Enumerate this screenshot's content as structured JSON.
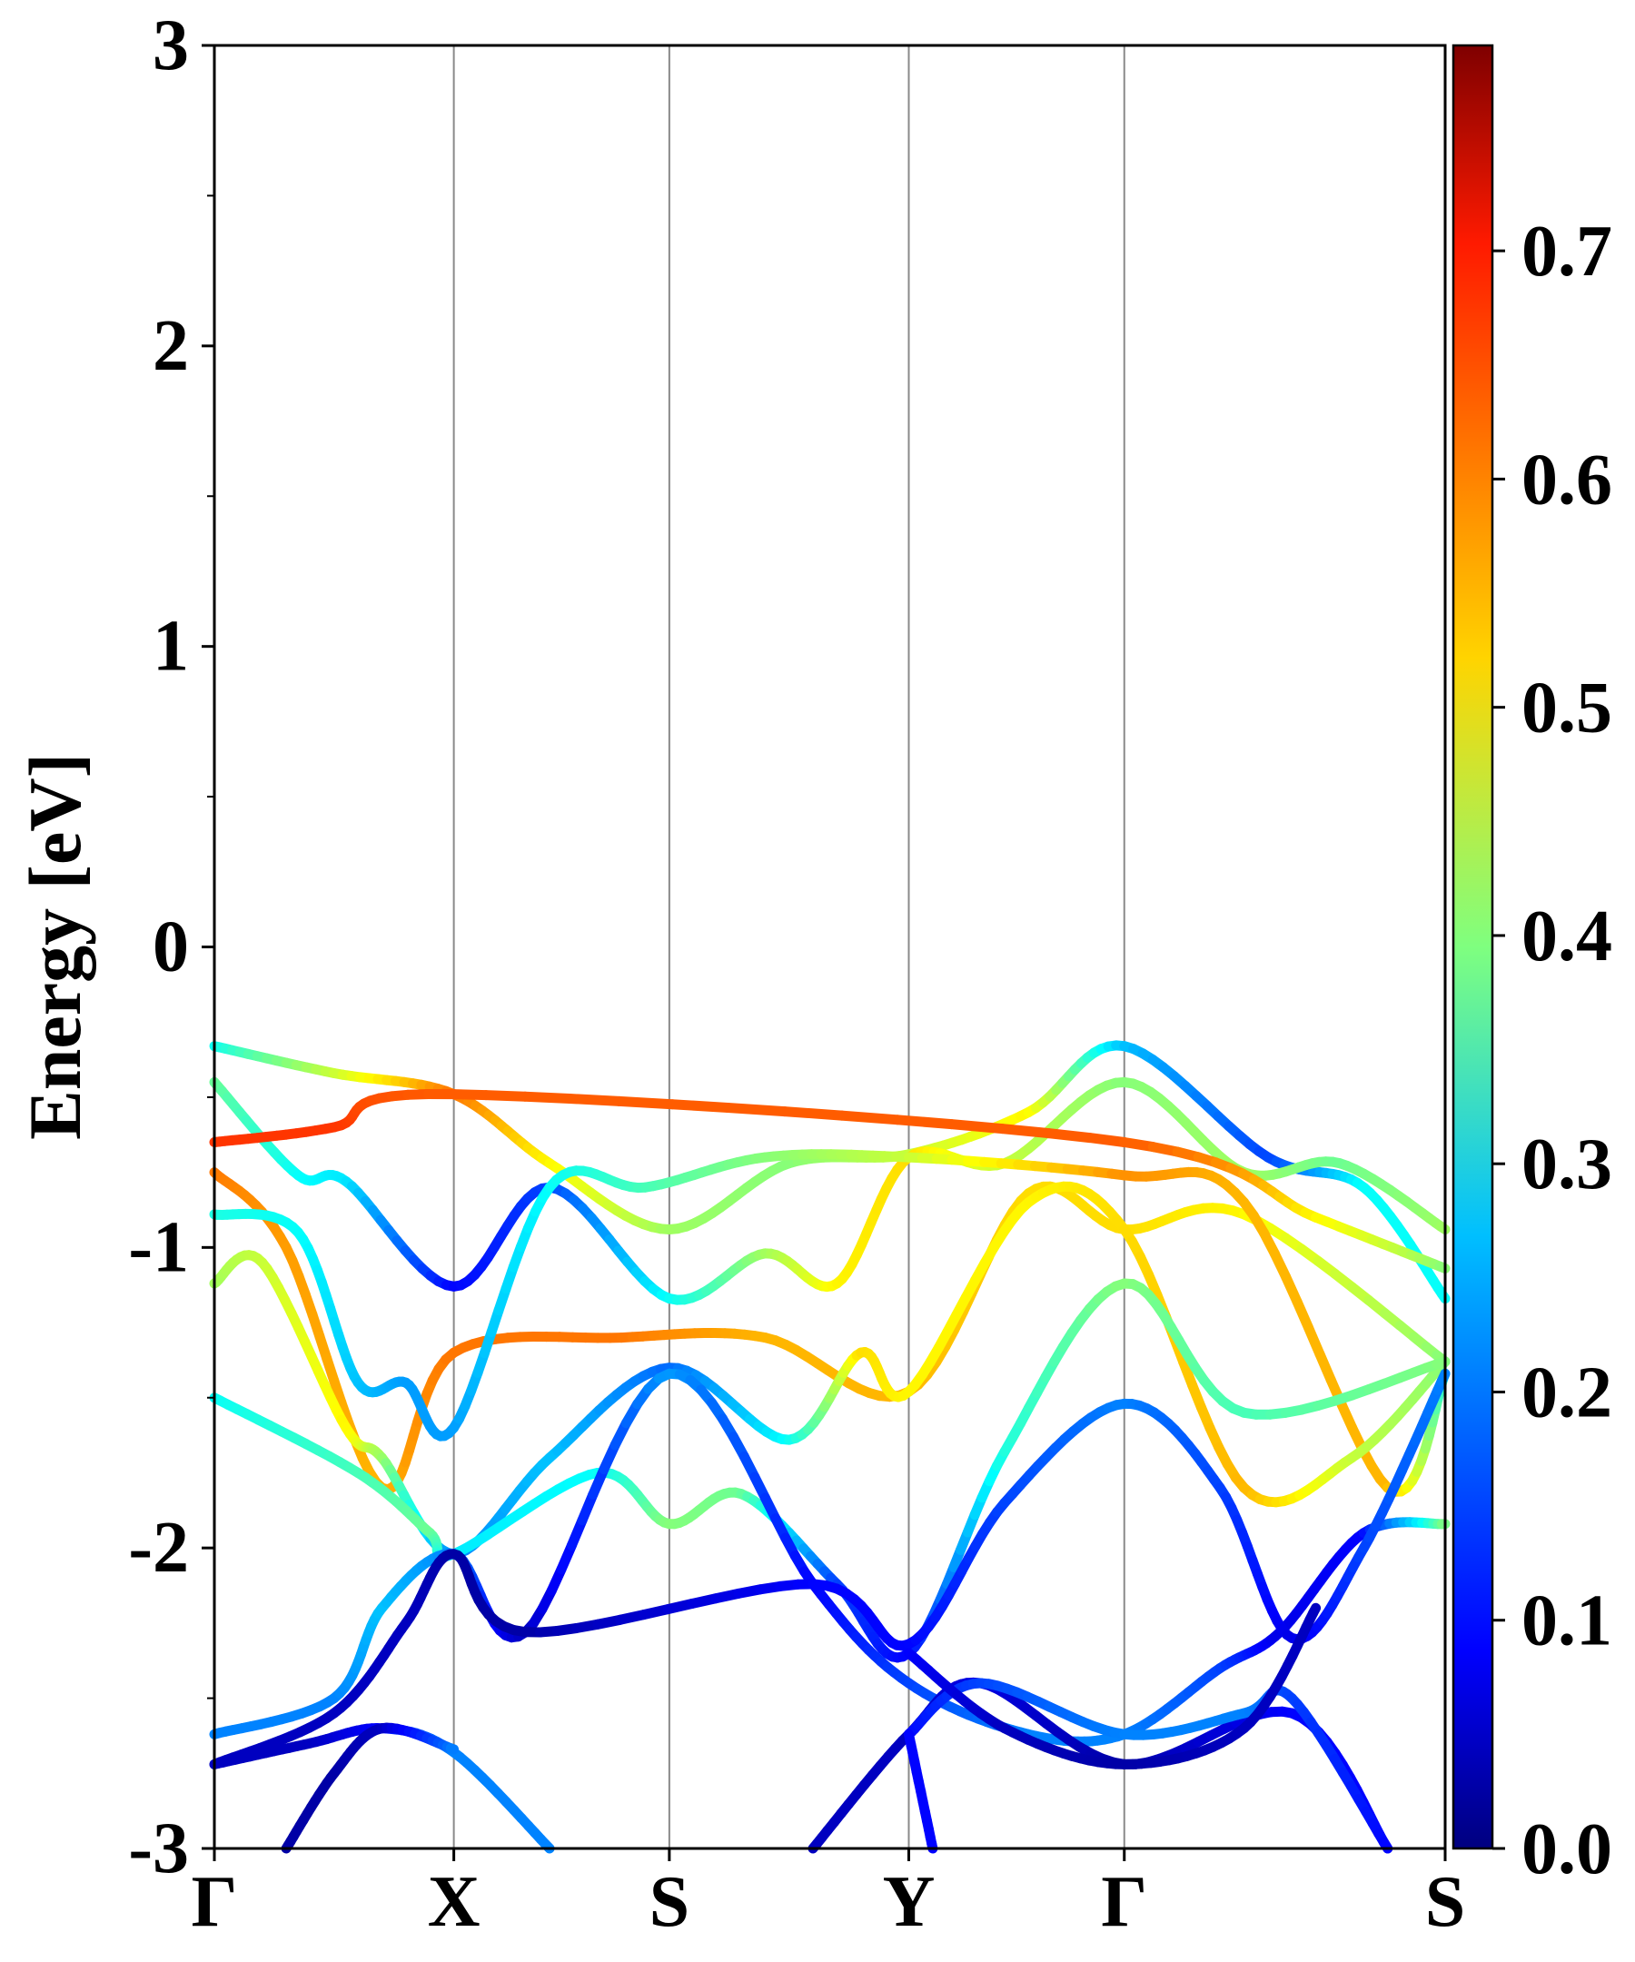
{
  "chart_data": {
    "type": "line",
    "title": "",
    "ylabel": "Energy [eV]",
    "xlabel": "",
    "ylim": [
      -3,
      3
    ],
    "yticks": [
      3,
      2,
      1,
      0,
      -1,
      -2,
      -3
    ],
    "ytick_labels": [
      "3",
      "2",
      "1",
      "0",
      "-1",
      "-2",
      "-3"
    ],
    "k_points": [
      {
        "label": "Γ",
        "x": 0.0
      },
      {
        "label": "X",
        "x": 1.0
      },
      {
        "label": "S",
        "x": 1.9
      },
      {
        "label": "Y",
        "x": 2.9
      },
      {
        "label": "Γ",
        "x": 3.8
      },
      {
        "label": "S",
        "x": 5.14
      }
    ],
    "grid": "vertical lines at high-symmetry points",
    "colorbar": {
      "colormap": "jet",
      "range": [
        0.0,
        0.79
      ],
      "ticks": [
        0.0,
        0.1,
        0.2,
        0.3,
        0.4,
        0.5,
        0.6,
        0.7
      ],
      "tick_labels": [
        "0.0",
        "0.1",
        "0.2",
        "0.3",
        "0.4",
        "0.5",
        "0.6",
        "0.7"
      ]
    },
    "bands": [
      {
        "points": [
          [
            0,
            -0.33
          ],
          [
            0.5,
            -0.42
          ],
          [
            1.0,
            -0.49
          ],
          [
            1.4,
            -0.72
          ],
          [
            1.9,
            -0.94
          ],
          [
            2.4,
            -0.72
          ],
          [
            2.9,
            -0.69
          ],
          [
            3.4,
            -0.55
          ],
          [
            3.8,
            -0.33
          ],
          [
            4.4,
            -0.7
          ],
          [
            4.8,
            -0.8
          ],
          [
            5.14,
            -1.17
          ]
        ],
        "w": [
          0.3,
          0.45,
          0.6,
          0.5,
          0.42,
          0.4,
          0.45,
          0.5,
          0.25,
          0.15,
          0.3,
          0.3
        ]
      },
      {
        "points": [
          [
            0,
            -0.45
          ],
          [
            0.35,
            -0.76
          ],
          [
            0.55,
            -0.78
          ],
          [
            1.0,
            -1.13
          ],
          [
            1.4,
            -0.8
          ],
          [
            1.9,
            -1.17
          ],
          [
            2.3,
            -1.02
          ],
          [
            2.6,
            -1.12
          ],
          [
            2.9,
            -0.7
          ],
          [
            3.3,
            -0.72
          ],
          [
            3.8,
            -0.45
          ],
          [
            4.3,
            -0.75
          ],
          [
            4.7,
            -0.72
          ],
          [
            5.14,
            -0.94
          ]
        ],
        "w": [
          0.38,
          0.3,
          0.28,
          0.1,
          0.15,
          0.3,
          0.42,
          0.5,
          0.52,
          0.45,
          0.4,
          0.42,
          0.38,
          0.42
        ]
      },
      {
        "points": [
          [
            0,
            -0.65
          ],
          [
            0.5,
            -0.6
          ],
          [
            1.0,
            -0.49
          ],
          [
            3.8,
            -0.65
          ],
          [
            4.6,
            -0.9
          ],
          [
            5.14,
            -1.07
          ]
        ],
        "w": [
          0.65,
          0.65,
          0.62,
          0.62,
          0.5,
          0.4
        ]
      },
      {
        "points": [
          [
            0,
            -0.75
          ],
          [
            0.3,
            -1.0
          ],
          [
            0.7,
            -1.8
          ],
          [
            1.0,
            -1.35
          ],
          [
            1.7,
            -1.3
          ],
          [
            2.3,
            -1.3
          ],
          [
            2.9,
            -1.48
          ],
          [
            3.4,
            -0.82
          ],
          [
            3.8,
            -0.94
          ],
          [
            4.3,
            -0.89
          ],
          [
            5.14,
            -1.38
          ]
        ],
        "w": [
          0.6,
          0.57,
          0.55,
          0.6,
          0.6,
          0.55,
          0.55,
          0.52,
          0.52,
          0.5,
          0.4
        ]
      },
      {
        "points": [
          [
            0,
            -0.89
          ],
          [
            0.35,
            -0.95
          ],
          [
            0.6,
            -1.45
          ],
          [
            0.8,
            -1.45
          ],
          [
            1.0,
            -1.6
          ],
          [
            1.4,
            -0.8
          ],
          [
            1.8,
            -0.8
          ],
          [
            2.3,
            -0.7
          ],
          [
            2.9,
            -0.7
          ],
          [
            3.8,
            -0.76
          ],
          [
            4.3,
            -0.85
          ],
          [
            4.9,
            -1.8
          ],
          [
            5.14,
            -1.42
          ]
        ],
        "w": [
          0.32,
          0.3,
          0.25,
          0.22,
          0.22,
          0.3,
          0.35,
          0.4,
          0.45,
          0.58,
          0.55,
          0.55,
          0.3
        ]
      },
      {
        "points": [
          [
            0,
            -1.12
          ],
          [
            0.2,
            -1.05
          ],
          [
            0.55,
            -1.6
          ],
          [
            0.7,
            -1.7
          ],
          [
            1.0,
            -2.02
          ],
          [
            1.4,
            -1.7
          ],
          [
            1.9,
            -1.4
          ],
          [
            2.4,
            -1.64
          ],
          [
            2.7,
            -1.35
          ],
          [
            2.9,
            -1.48
          ],
          [
            3.4,
            -0.85
          ],
          [
            3.8,
            -0.94
          ],
          [
            4.3,
            -1.8
          ],
          [
            4.75,
            -1.7
          ],
          [
            5.14,
            -1.38
          ]
        ],
        "w": [
          0.42,
          0.45,
          0.5,
          0.42,
          0.2,
          0.25,
          0.18,
          0.3,
          0.52,
          0.5,
          0.5,
          0.52,
          0.55,
          0.45,
          0.4
        ]
      },
      {
        "points": [
          [
            0,
            -1.5
          ],
          [
            0.6,
            -1.75
          ],
          [
            0.9,
            -1.95
          ],
          [
            1.0,
            -2.02
          ],
          [
            1.6,
            -1.75
          ],
          [
            1.9,
            -1.92
          ],
          [
            2.2,
            -1.82
          ],
          [
            2.6,
            -2.12
          ],
          [
            2.9,
            -2.35
          ],
          [
            3.3,
            -1.68
          ],
          [
            3.8,
            -1.12
          ],
          [
            4.3,
            -1.55
          ],
          [
            5.14,
            -1.38
          ]
        ],
        "w": [
          0.3,
          0.35,
          0.38,
          0.28,
          0.3,
          0.4,
          0.38,
          0.15,
          0.1,
          0.32,
          0.4,
          0.35,
          0.4
        ]
      },
      {
        "points": [
          [
            0,
            -2.62
          ],
          [
            0.5,
            -2.5
          ],
          [
            0.7,
            -2.2
          ],
          [
            1.0,
            -2.02
          ],
          [
            1.3,
            -2.28
          ],
          [
            1.9,
            -1.42
          ],
          [
            2.5,
            -2.12
          ],
          [
            2.9,
            -2.45
          ],
          [
            3.4,
            -2.62
          ],
          [
            3.8,
            -2.62
          ],
          [
            4.2,
            -2.4
          ],
          [
            4.45,
            -2.28
          ],
          [
            4.8,
            -1.95
          ],
          [
            5.14,
            -1.92
          ]
        ],
        "w": [
          0.2,
          0.2,
          0.25,
          0.2,
          0.05,
          0.22,
          0.1,
          0.15,
          0.2,
          0.2,
          0.15,
          0.08,
          0.1,
          0.4
        ]
      },
      {
        "points": [
          [
            0,
            -2.72
          ],
          [
            0.5,
            -2.55
          ],
          [
            0.8,
            -2.25
          ],
          [
            1.0,
            -2.02
          ],
          [
            1.3,
            -2.28
          ],
          [
            2.5,
            -2.12
          ],
          [
            2.9,
            -2.32
          ],
          [
            3.3,
            -1.85
          ],
          [
            3.8,
            -1.52
          ],
          [
            4.2,
            -1.8
          ],
          [
            4.5,
            -2.3
          ],
          [
            4.8,
            -2.0
          ],
          [
            5.14,
            -1.42
          ]
        ],
        "w": [
          0.05,
          0.05,
          0.05,
          0.03,
          0.03,
          0.1,
          0.1,
          0.15,
          0.2,
          0.15,
          0.08,
          0.15,
          0.2
        ]
      },
      {
        "points": [
          [
            0,
            -2.72
          ],
          [
            0.4,
            -2.65
          ],
          [
            0.7,
            -2.6
          ],
          [
            1.0,
            -2.68
          ],
          [
            1.4,
            -3.0
          ]
        ],
        "w": [
          0.05,
          0.05,
          0.1,
          0.2,
          0.2
        ]
      },
      {
        "points": [
          [
            0.3,
            -3.0
          ],
          [
            0.5,
            -2.75
          ],
          [
            0.7,
            -2.6
          ],
          [
            1.0,
            -2.67
          ]
        ],
        "w": [
          0.03,
          0.03,
          0.05,
          0.2
        ]
      },
      {
        "points": [
          [
            2.5,
            -3.0
          ],
          [
            2.9,
            -2.62
          ],
          [
            3.2,
            -2.45
          ],
          [
            3.8,
            -2.72
          ],
          [
            4.5,
            -2.55
          ],
          [
            4.9,
            -3.0
          ]
        ],
        "w": [
          0.05,
          0.05,
          0.08,
          0.03,
          0.1,
          0.1
        ]
      },
      {
        "points": [
          [
            2.9,
            -2.62
          ],
          [
            3.2,
            -2.45
          ],
          [
            3.8,
            -2.62
          ],
          [
            4.3,
            -2.55
          ],
          [
            4.5,
            -2.5
          ],
          [
            4.9,
            -3.0
          ]
        ],
        "w": [
          0.1,
          0.15,
          0.2,
          0.2,
          0.15,
          0.1
        ]
      },
      {
        "points": [
          [
            2.9,
            -2.62
          ],
          [
            3.0,
            -3.0
          ]
        ],
        "w": [
          0.1,
          0.1
        ]
      },
      {
        "points": [
          [
            2.9,
            -2.35
          ],
          [
            3.3,
            -2.6
          ],
          [
            3.8,
            -2.72
          ],
          [
            4.3,
            -2.6
          ],
          [
            4.6,
            -2.2
          ]
        ],
        "w": [
          0.1,
          0.05,
          0.03,
          0.05,
          0.05
        ]
      }
    ]
  }
}
